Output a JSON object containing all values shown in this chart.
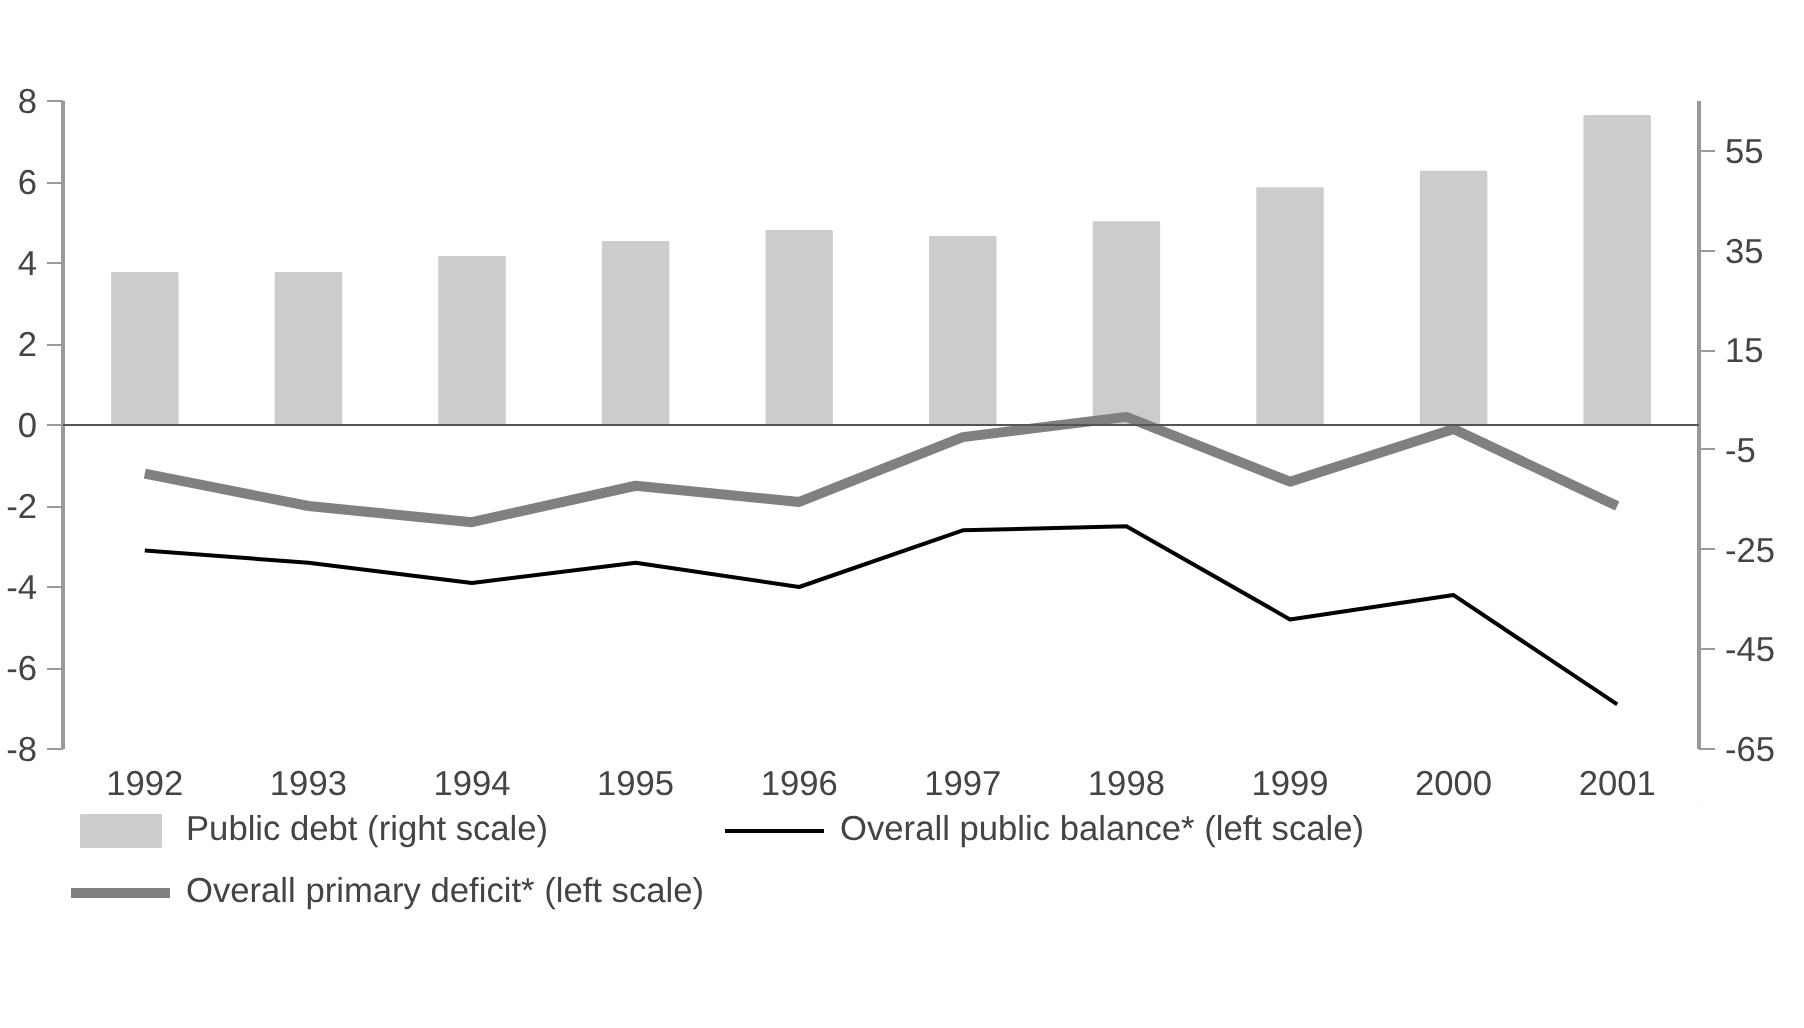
{
  "chart_data": {
    "type": "bar",
    "categories": [
      "1992",
      "1993",
      "1994",
      "1995",
      "1996",
      "1997",
      "1998",
      "1999",
      "2000",
      "2001"
    ],
    "series": [
      {
        "name": "Public debt (right scale)",
        "axis": "y2",
        "color": "#cccccc",
        "values": [
          30.5,
          30.5,
          33.7,
          36.7,
          38.9,
          37.7,
          40.7,
          47.5,
          50.8,
          62.0
        ]
      },
      {
        "name": "Overall public balance* (left scale)",
        "type": "line",
        "color": "#000000",
        "values": [
          -3.1,
          -3.4,
          -3.9,
          -3.4,
          -4.0,
          -2.6,
          -2.5,
          -4.8,
          -4.2,
          -6.9
        ]
      },
      {
        "name": "Overall primary deficit* (left scale)",
        "type": "line",
        "color": "#808080",
        "values": [
          -1.2,
          -2.0,
          -2.4,
          -1.5,
          -1.9,
          -0.3,
          0.2,
          -1.4,
          -0.1,
          -2.0
        ]
      }
    ],
    "ylim": [
      -8,
      8
    ],
    "yticks": [
      -8,
      -6,
      -4,
      -2,
      0,
      2,
      4,
      6,
      8
    ],
    "y2lim": [
      -65,
      65
    ],
    "y2ticks": [
      -65,
      -45,
      -25,
      -5,
      15,
      35,
      55
    ],
    "legend": "bottom"
  }
}
